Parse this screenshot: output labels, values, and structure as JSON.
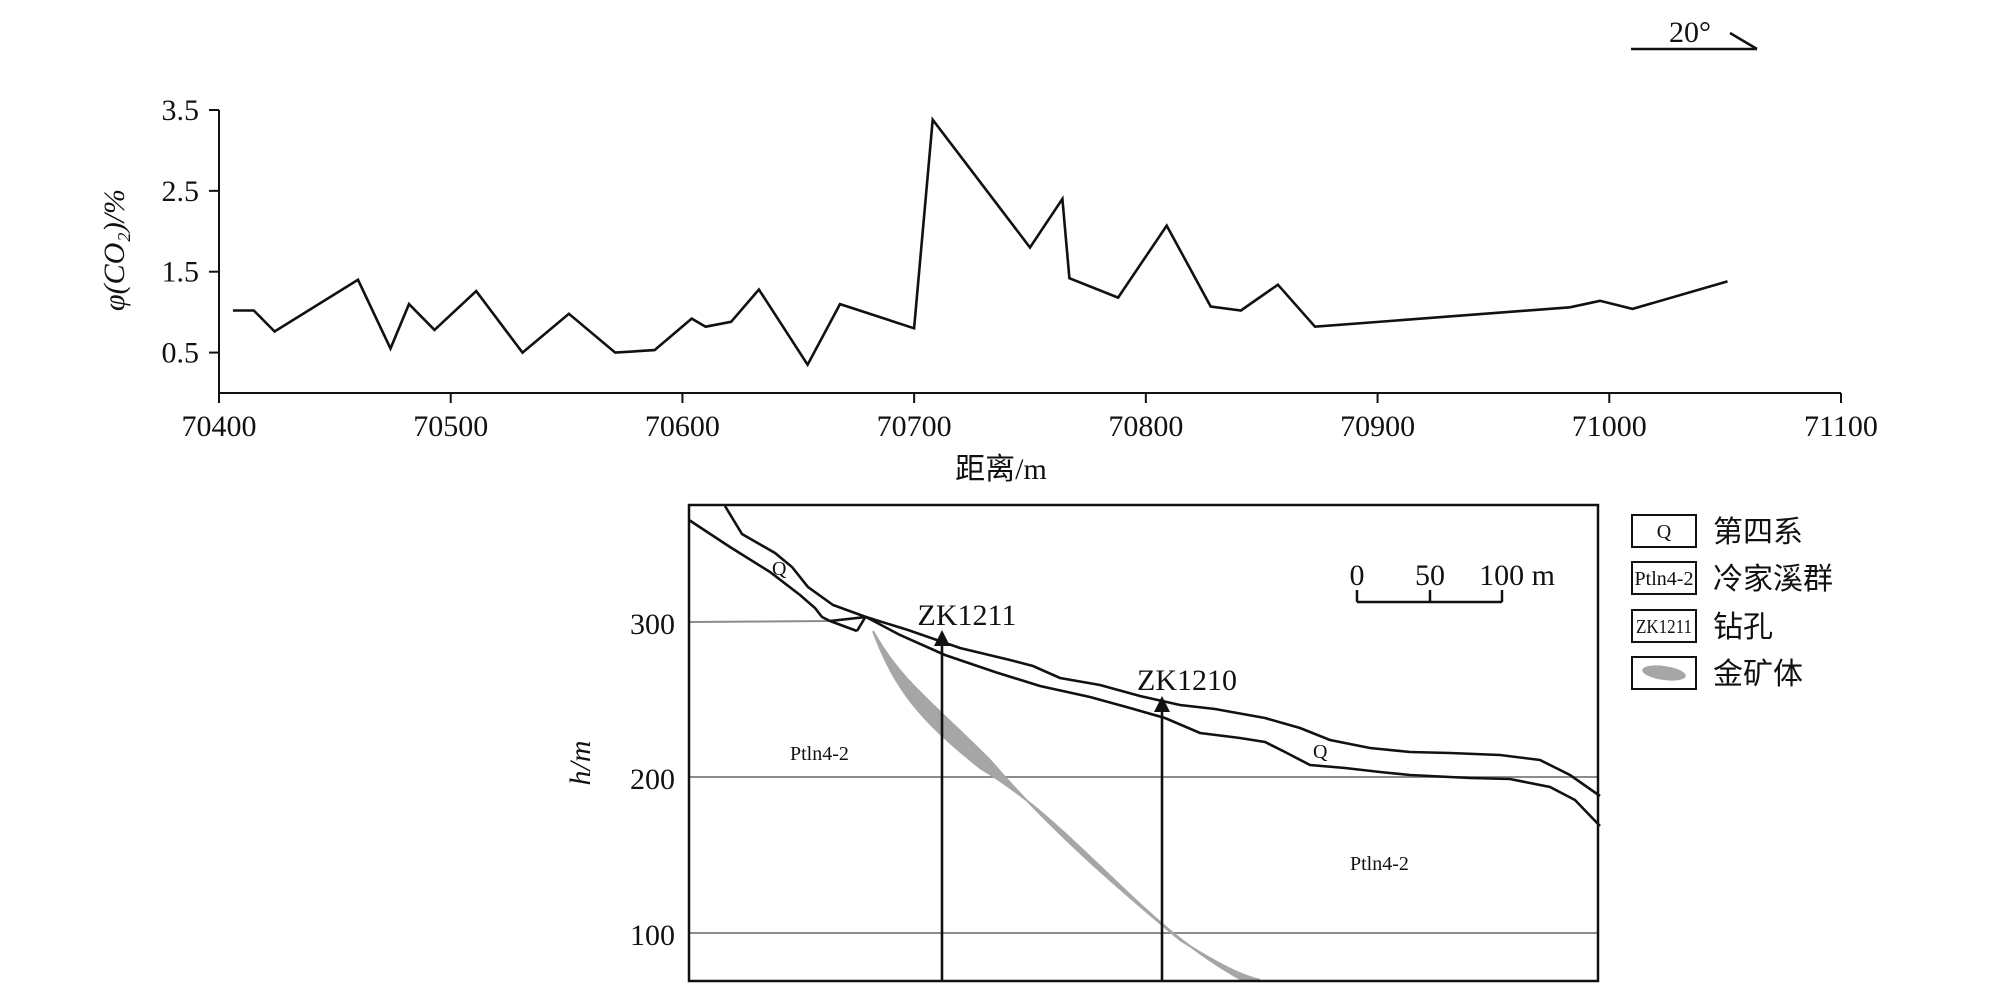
{
  "chart_data": [
    {
      "type": "line",
      "xlabel": "距离/m",
      "ylabel": "φ(CO₂)/%",
      "xlim": [
        70400,
        71100
      ],
      "ylim": [
        0.0,
        3.5
      ],
      "xticks": [
        "70400",
        "70500",
        "70600",
        "70700",
        "70800",
        "70900",
        "71000",
        "71100"
      ],
      "yticks": [
        "0.5",
        "1.5",
        "2.5",
        "3.5"
      ],
      "grid": false,
      "series": [
        {
          "x": [
            70406,
            70415,
            70424,
            70460,
            70474,
            70482,
            70493,
            70511,
            70531,
            70551,
            70571,
            70588,
            70604,
            70610,
            70621,
            70633,
            70654,
            70668,
            70700,
            70708,
            70750,
            70764,
            70767,
            70788,
            70809,
            70828,
            70841,
            70857,
            70873,
            70983,
            70996,
            71010,
            71051
          ],
          "y": [
            1.02,
            1.02,
            0.76,
            1.4,
            0.55,
            1.1,
            0.78,
            1.26,
            0.5,
            0.98,
            0.5,
            0.53,
            0.92,
            0.82,
            0.88,
            1.28,
            0.35,
            1.1,
            0.8,
            3.38,
            1.8,
            2.4,
            1.42,
            1.18,
            2.07,
            1.07,
            1.02,
            1.34,
            0.82,
            1.06,
            1.14,
            1.04,
            1.38
          ]
        }
      ]
    },
    {
      "type": "diagram",
      "ylabel": "h/m",
      "yticks": [
        "300",
        "200",
        "100"
      ],
      "drill_labels": [
        "ZK1211",
        "ZK1210"
      ],
      "unit_labels": [
        "Q",
        "Q",
        "Ptln4-2",
        "Ptln4-2"
      ],
      "scale_labels": [
        "0",
        "50",
        "100 m"
      ]
    }
  ],
  "orientation": {
    "label": "20°"
  },
  "legend": {
    "items": [
      {
        "symbol": "Q",
        "label": "第四系"
      },
      {
        "symbol": "Ptln4-2",
        "label": "冷家溪群"
      },
      {
        "symbol": "ZK1211",
        "label": "钻孔"
      },
      {
        "symbol": "",
        "label": "金矿体"
      }
    ]
  },
  "colors": {
    "line": "#111111",
    "ore": "#a6a6a6",
    "grid": "#8c8c8c"
  }
}
